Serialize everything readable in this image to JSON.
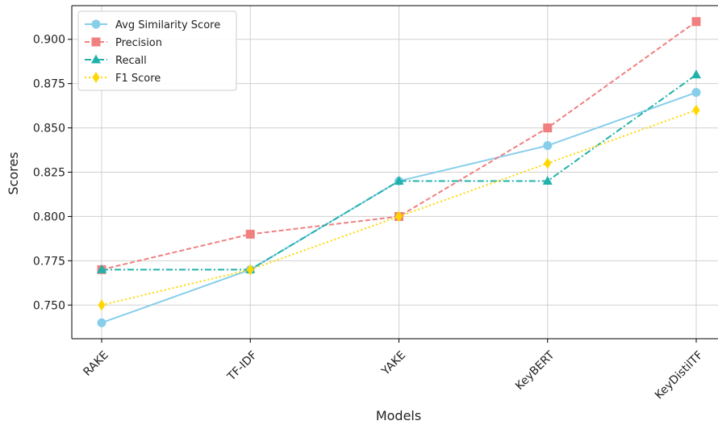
{
  "chart_data": {
    "type": "line",
    "title": "",
    "xlabel": "Models",
    "ylabel": "Scores",
    "categories": [
      "RAKE",
      "TF-IDF",
      "YAKE",
      "KeyBERT",
      "KeyDistilTF"
    ],
    "ylim": [
      0.731,
      0.919
    ],
    "yticks": [
      "0.750",
      "0.775",
      "0.800",
      "0.825",
      "0.850",
      "0.875",
      "0.900"
    ],
    "ytick_values": [
      0.75,
      0.775,
      0.8,
      0.825,
      0.85,
      0.875,
      0.9
    ],
    "grid": true,
    "legend_position": "upper left",
    "series": [
      {
        "name": "Avg Similarity Score",
        "values": [
          0.74,
          0.77,
          0.82,
          0.84,
          0.87
        ],
        "color": "#87CEEB",
        "marker": "circle",
        "dash": "solid"
      },
      {
        "name": "Precision",
        "values": [
          0.77,
          0.79,
          0.8,
          0.85,
          0.91
        ],
        "color": "#F08080",
        "marker": "square",
        "dash": "dashed"
      },
      {
        "name": "Recall",
        "values": [
          0.77,
          0.77,
          0.82,
          0.82,
          0.88
        ],
        "color": "#20B2AA",
        "marker": "triangle",
        "dash": "dashdot"
      },
      {
        "name": "F1 Score",
        "values": [
          0.75,
          0.77,
          0.8,
          0.83,
          0.86
        ],
        "color": "#FFD700",
        "marker": "diamond",
        "dash": "dotted"
      }
    ]
  }
}
